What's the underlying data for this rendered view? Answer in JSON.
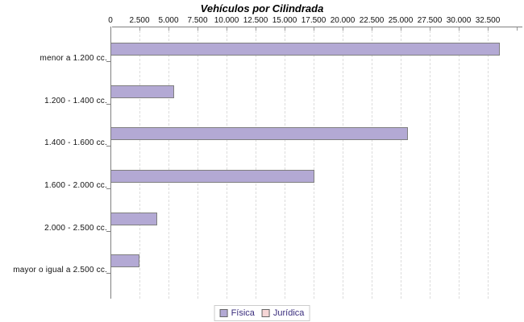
{
  "title": "Vehículos por Cilindrada",
  "chart_data": {
    "type": "bar",
    "orientation": "horizontal",
    "title": "Vehículos por Cilindrada",
    "categories": [
      "menor a 1.200 cc.",
      "1.200 - 1.400 cc.",
      "1.400 - 1.600 cc.",
      "1.600 - 2.000 cc.",
      "2.000 - 2.500 cc.",
      "mayor o igual a 2.500 cc."
    ],
    "series": [
      {
        "name": "Física",
        "color": "#b3a9d4",
        "border_color": "#7f7f7f",
        "values": [
          33450,
          5400,
          25550,
          17500,
          3950,
          2430
        ]
      },
      {
        "name": "Jurídica",
        "color": "#f6d6d6",
        "border_color": "#7f7f7f",
        "values": [
          0,
          0,
          0,
          0,
          0,
          0
        ]
      }
    ],
    "value_axis": {
      "position": "top",
      "min": 0,
      "max": 35500,
      "tick_interval": 2500,
      "tick_labels": [
        "0",
        "2.500",
        "5.000",
        "7.500",
        "10.000",
        "12.500",
        "15.000",
        "17.500",
        "20.000",
        "22.500",
        "25.000",
        "27.500",
        "30.000",
        "32.500"
      ],
      "gridlines": true
    },
    "legend": {
      "position": "bottom",
      "entries": [
        "Física",
        "Jurídica"
      ]
    }
  },
  "colors": {
    "background": "#ffffff",
    "axis_line": "#808080",
    "gridline": "#dcdcdc",
    "tick": "#999999",
    "title_text": "#000000",
    "label_text": "#111111",
    "legend_text": "#3a2d7d",
    "legend_border": "#cccccc"
  }
}
